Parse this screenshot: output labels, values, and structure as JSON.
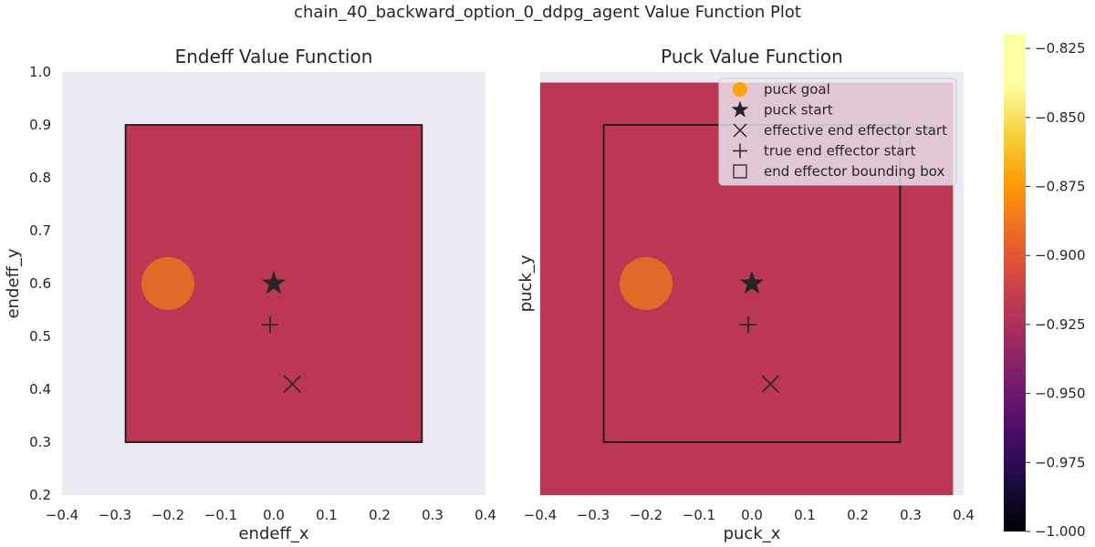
{
  "figure": {
    "title": "chain_40_backward_option_0_ddpg_agent Value Function Plot"
  },
  "colors": {
    "axes_bg": "#EAEAF2",
    "value_fill": "#BC3754",
    "puck_goal": "#F98C0A",
    "puck_goal_legend": "#FFA500",
    "marker": "#262626",
    "box_edge": "#1A1A1A"
  },
  "chart_data": [
    {
      "type": "heatmap",
      "title": "Endeff Value Function",
      "xlabel": "endeff_x",
      "ylabel": "endeff_y",
      "xlim": [
        -0.4,
        0.4
      ],
      "ylim": [
        0.2,
        1.0
      ],
      "xticks": [
        "−0.4",
        "−0.3",
        "−0.2",
        "−0.1",
        "0.0",
        "0.1",
        "0.2",
        "0.3",
        "0.4"
      ],
      "yticks": [
        "0.2",
        "0.3",
        "0.4",
        "0.5",
        "0.6",
        "0.7",
        "0.8",
        "0.9",
        "1.0"
      ],
      "grid": false,
      "value_region": {
        "x": [
          -0.28,
          0.28
        ],
        "y": [
          0.3,
          0.9
        ],
        "value": -0.91
      },
      "bounding_box": {
        "x": [
          -0.28,
          0.28
        ],
        "y": [
          0.3,
          0.9
        ]
      },
      "puck_goal": {
        "x": -0.2,
        "y": 0.6,
        "radius": 0.05
      },
      "puck_start": {
        "x": 0.0,
        "y": 0.6
      },
      "effective_end_effector_start": {
        "x": 0.035,
        "y": 0.41
      },
      "true_end_effector_start": {
        "x": -0.007,
        "y": 0.522
      }
    },
    {
      "type": "heatmap",
      "title": "Puck Value Function",
      "xlabel": "puck_x",
      "ylabel": "puck_y",
      "xlim": [
        -0.4,
        0.4
      ],
      "ylim": [
        0.2,
        1.0
      ],
      "xticks": [
        "−0.4",
        "−0.3",
        "−0.2",
        "−0.1",
        "0.0",
        "0.1",
        "0.2",
        "0.3",
        "0.4"
      ],
      "grid": false,
      "value_region": {
        "x": [
          -0.4,
          0.38
        ],
        "y": [
          0.2,
          0.98
        ],
        "value": -0.91
      },
      "bounding_box": {
        "x": [
          -0.28,
          0.28
        ],
        "y": [
          0.3,
          0.9
        ]
      },
      "puck_goal": {
        "x": -0.2,
        "y": 0.6,
        "radius": 0.05
      },
      "puck_start": {
        "x": 0.0,
        "y": 0.6
      },
      "effective_end_effector_start": {
        "x": 0.035,
        "y": 0.41
      },
      "true_end_effector_start": {
        "x": -0.007,
        "y": 0.522
      },
      "legend": {
        "position": "top-right",
        "entries": [
          {
            "label": "puck goal",
            "marker": "circle"
          },
          {
            "label": "puck start",
            "marker": "star"
          },
          {
            "label": "effective end effector start",
            "marker": "x"
          },
          {
            "label": "true end effector start",
            "marker": "plus"
          },
          {
            "label": "end effector bounding box",
            "marker": "square"
          }
        ]
      }
    }
  ],
  "colorbar": {
    "colormap": "inferno",
    "range": [
      -1.0,
      -0.82
    ],
    "ticks": [
      -0.825,
      -0.85,
      -0.875,
      -0.9,
      -0.925,
      -0.95,
      -0.975,
      -1.0
    ],
    "tick_labels": [
      "−0.825",
      "−0.850",
      "−0.875",
      "−0.900",
      "−0.925",
      "−0.950",
      "−0.975",
      "−1.000"
    ]
  }
}
